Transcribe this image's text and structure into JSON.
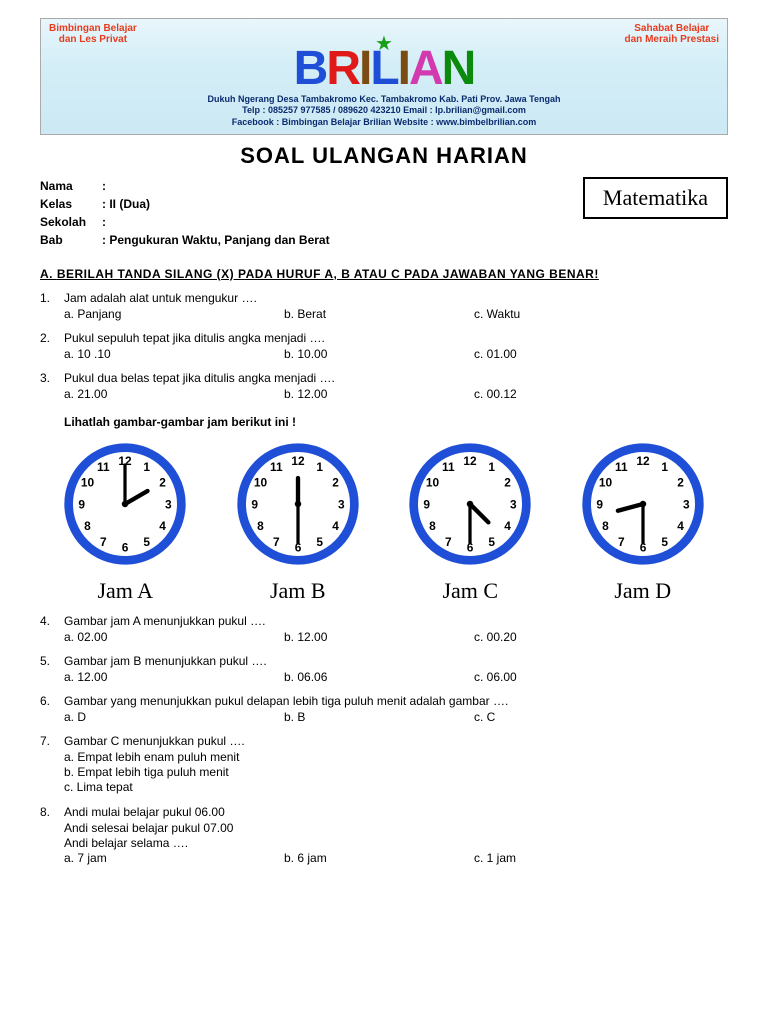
{
  "banner": {
    "left_text_1": "Bimbingan Belajar",
    "left_text_2": "dan Les Privat",
    "right_text_1": "Sahabat Belajar",
    "right_text_2": "dan Meraih Prestasi",
    "letters": [
      "B",
      "R",
      "I",
      "L",
      "I",
      "A",
      "N"
    ],
    "letter_colors": [
      "#1f4fd6",
      "#e01919",
      "#7a4b12",
      "#1f4fd6",
      "#7a4b12",
      "#d43ab0",
      "#0c8a0c"
    ],
    "info_1": "Dukuh Ngerang Desa Tambakromo Kec. Tambakromo Kab. Pati Prov. Jawa Tengah",
    "info_2": "Telp : 085257 977585 / 089620 423210   Email : lp.brilian@gmail.com",
    "info_3": "Facebook : Bimbingan Belajar Brilian    Website : www.bimbelbrilian.com"
  },
  "doc_title": "SOAL ULANGAN HARIAN",
  "meta": {
    "nama_label": "Nama",
    "nama_value": ":",
    "kelas_label": "Kelas",
    "kelas_value": ": II (Dua)",
    "sekolah_label": "Sekolah",
    "sekolah_value": ":",
    "bab_label": "Bab",
    "bab_value": ": Pengukuran Waktu, Panjang dan Berat"
  },
  "subject": "Matematika",
  "instruction_label": "A.",
  "instruction": "BERILAH TANDA SILANG (X) PADA HURUF A, B ATAU C PADA JAWABAN YANG BENAR!",
  "clock_instruction": "Lihatlah gambar-gambar jam berikut ini !",
  "clocks": {
    "ring_color": "#1f4fd6",
    "face_color": "#ffffff",
    "tick_color": "#1f4fd6",
    "hand_color": "#000000",
    "number_color": "#000000",
    "items": [
      {
        "label": "Jam A",
        "hour_angle": 60,
        "minute_angle": 0
      },
      {
        "label": "Jam B",
        "hour_angle": 0,
        "minute_angle": 180
      },
      {
        "label": "Jam C",
        "hour_angle": 135,
        "minute_angle": 180
      },
      {
        "label": "Jam D",
        "hour_angle": 255,
        "minute_angle": 180
      }
    ]
  },
  "questions": [
    {
      "n": "1.",
      "prompt": "Jam adalah alat untuk mengukur ….",
      "a": "a. Panjang",
      "b": "b. Berat",
      "c": "c. Waktu"
    },
    {
      "n": "2.",
      "prompt": "Pukul sepuluh tepat jika ditulis angka menjadi ….",
      "a": "a. 10 .10",
      "b": "b. 10.00",
      "c": "c. 01.00"
    },
    {
      "n": "3.",
      "prompt": "Pukul dua belas tepat jika ditulis angka menjadi ….",
      "a": "a. 21.00",
      "b": "b. 12.00",
      "c": "c. 00.12"
    },
    {
      "n": "4.",
      "prompt": "Gambar jam A menunjukkan pukul ….",
      "a": "a. 02.00",
      "b": "b. 12.00",
      "c": "c. 00.20"
    },
    {
      "n": "5.",
      "prompt": "Gambar jam B menunjukkan pukul ….",
      "a": "a. 12.00",
      "b": "b. 06.06",
      "c": "c. 06.00"
    },
    {
      "n": "6.",
      "prompt": "Gambar yang menunjukkan pukul delapan lebih tiga puluh menit adalah gambar ….",
      "a": "a. D",
      "b": "b.  B",
      "c": "c. C"
    },
    {
      "n": "7.",
      "prompt": "Gambar C menunjukkan pukul ….",
      "lines": [
        "a. Empat lebih enam puluh menit",
        "b. Empat lebih tiga puluh menit",
        "c. Lima tepat"
      ]
    },
    {
      "n": "8.",
      "prompt": "Andi mulai belajar pukul 06.00",
      "lines": [
        "Andi selesai belajar pukul 07.00",
        "Andi belajar selama …."
      ],
      "a": "a. 7 jam",
      "b": "b. 6 jam",
      "c": "c. 1 jam"
    }
  ]
}
